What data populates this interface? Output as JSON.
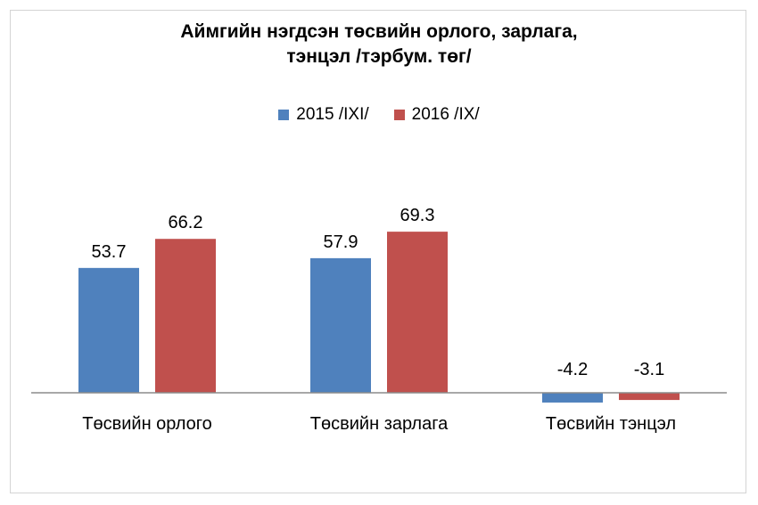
{
  "chart_data": {
    "type": "bar",
    "title_line1": "Аймгийн нэгдсэн төсвийн орлого, зарлага,",
    "title_line2": "тэнцэл /тэрбум. төг/",
    "categories": [
      "Төсвийн орлого",
      "Төсвийн зарлага",
      "Төсвийн тэнцэл"
    ],
    "series": [
      {
        "name": "2015 /IXI/",
        "color": "#4f81bd",
        "values": [
          53.7,
          57.9,
          -4.2
        ]
      },
      {
        "name": "2016 /IX/",
        "color": "#c0504d",
        "values": [
          66.2,
          69.3,
          -3.1
        ]
      }
    ],
    "legend_position": "top",
    "grid": false,
    "data_labels": true
  }
}
